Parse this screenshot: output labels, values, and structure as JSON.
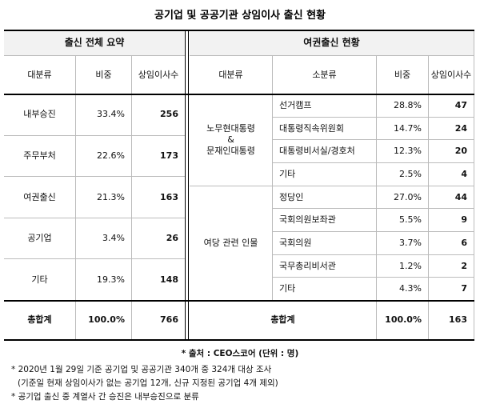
{
  "title": "공기업 및 공공기관 상임이사 출신 현황",
  "summary": {
    "title": "출신 전체 요약",
    "columns": [
      "대분류",
      "비중",
      "상임이사수"
    ],
    "rows": [
      [
        "내부승진",
        "33.4%",
        "256"
      ],
      [
        "주무부처",
        "22.6%",
        "173"
      ],
      [
        "여권출신",
        "21.3%",
        "163"
      ],
      [
        "공기업",
        "3.4%",
        "26"
      ],
      [
        "기타",
        "19.3%",
        "148"
      ]
    ],
    "total": [
      "총합계",
      "100.0%",
      "766"
    ]
  },
  "passport": {
    "title": "여권출신 현황",
    "columns": [
      "대분류",
      "소분류",
      "비중",
      "상임이사수"
    ],
    "groups": [
      {
        "label": "노무현대통령\n&\n문재인대통령",
        "rows": [
          [
            "선거캠프",
            "28.8%",
            "47"
          ],
          [
            "대통령직속위원회",
            "14.7%",
            "24"
          ],
          [
            "대통령비서실/경호처",
            "12.3%",
            "20"
          ],
          [
            "기타",
            "2.5%",
            "4"
          ]
        ]
      },
      {
        "label": "여당 관련 인물",
        "rows": [
          [
            "정당인",
            "27.0%",
            "44"
          ],
          [
            "국회의원보좌관",
            "5.5%",
            "9"
          ],
          [
            "국회의원",
            "3.7%",
            "6"
          ],
          [
            "국무총리비서관",
            "1.2%",
            "2"
          ],
          [
            "기타",
            "4.3%",
            "7"
          ]
        ]
      }
    ],
    "total": [
      "총합계",
      "100.0%",
      "163"
    ]
  },
  "footnotes": {
    "source": "* 출처 : CEO스코어 (단위 : 명)",
    "notes": [
      "* 2020년 1월 29일 기준 공기업 및 공공기관 340개 중 324개 대상 조사",
      "(기준일 현재 상임이사가 없는 공기업 12개, 신규 지정된 공기업 4개 제외)",
      "* 공기업 출신 중 계열사 간 승진은 내부승진으로 분류"
    ]
  }
}
